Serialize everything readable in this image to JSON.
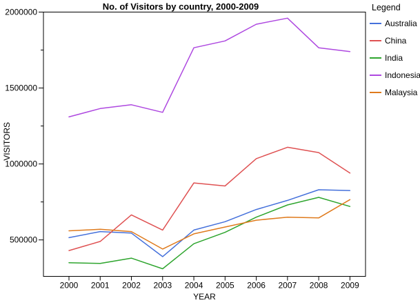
{
  "chart_data": {
    "type": "line",
    "title": "No. of Visitors by country, 2000-2009",
    "xlabel": "YEAR",
    "ylabel": "VISITORS",
    "x": [
      2000,
      2001,
      2002,
      2003,
      2004,
      2005,
      2006,
      2007,
      2008,
      2009
    ],
    "series": [
      {
        "name": "Australia",
        "color": "#4470DB",
        "values": [
          515000,
          555000,
          545000,
          390000,
          565000,
          620000,
          700000,
          760000,
          830000,
          825000
        ]
      },
      {
        "name": "China",
        "color": "#DF5152",
        "values": [
          430000,
          490000,
          665000,
          565000,
          875000,
          855000,
          1035000,
          1110000,
          1075000,
          940000
        ]
      },
      {
        "name": "India",
        "color": "#2EA52E",
        "values": [
          350000,
          345000,
          380000,
          310000,
          475000,
          550000,
          650000,
          730000,
          780000,
          720000
        ]
      },
      {
        "name": "Indonesia",
        "color": "#AE48E0",
        "values": [
          1310000,
          1365000,
          1390000,
          1340000,
          1765000,
          1810000,
          1920000,
          1960000,
          1765000,
          1740000
        ]
      },
      {
        "name": "Malaysia",
        "color": "#DF7A1C",
        "values": [
          560000,
          570000,
          555000,
          440000,
          540000,
          585000,
          630000,
          650000,
          645000,
          765000
        ]
      }
    ],
    "y_ticks": {
      "major": [
        500000,
        1000000,
        1500000,
        2000000
      ],
      "labels": [
        "500000",
        "1000000",
        "1500000",
        "2000000"
      ],
      "minor": [
        750000,
        1250000,
        1750000
      ]
    },
    "ylim": [
      260000,
      2000000
    ],
    "x_tick_labels": [
      "2000",
      "2001",
      "2002",
      "2003",
      "2004",
      "2005",
      "2006",
      "2007",
      "2008",
      "2009"
    ],
    "legend": {
      "title": "Legend",
      "position": "right"
    },
    "grid": false,
    "frame": true
  }
}
